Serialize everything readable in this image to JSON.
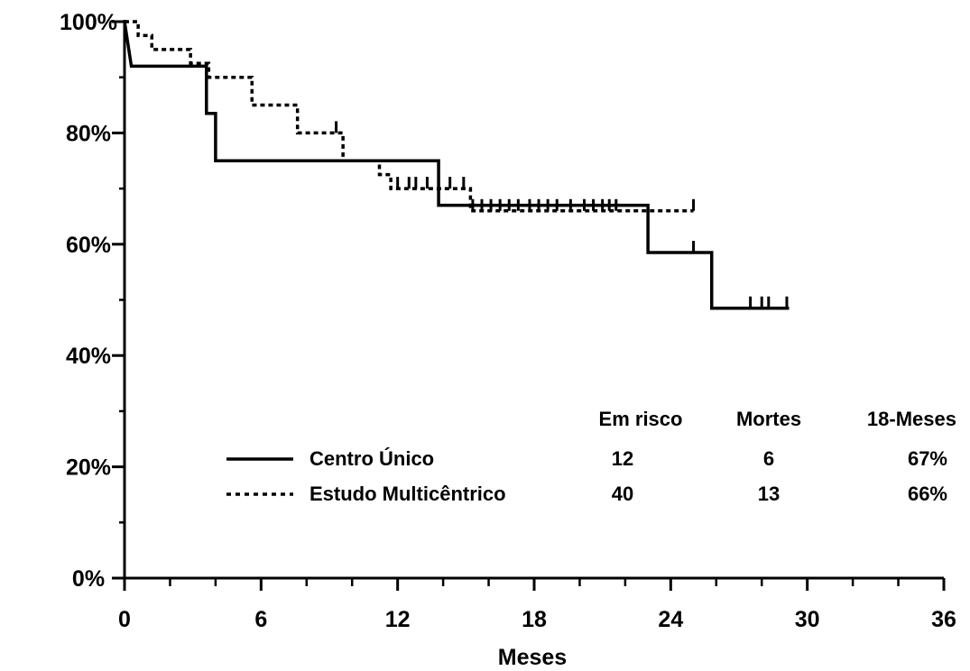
{
  "chart_data": {
    "type": "line",
    "title": "",
    "xlabel": "Meses",
    "ylabel": "",
    "xlim": [
      0,
      36
    ],
    "ylim": [
      0,
      100
    ],
    "x_ticks": [
      0,
      6,
      12,
      18,
      24,
      30,
      36
    ],
    "y_ticks": [
      0,
      20,
      40,
      60,
      80,
      100
    ],
    "x_tick_labels": [
      "0",
      "6",
      "12",
      "18",
      "24",
      "30",
      "36"
    ],
    "y_tick_labels": [
      "0%",
      "20%",
      "40%",
      "60%",
      "80%",
      "100%"
    ],
    "grid": false,
    "legend_position": "bottom-right",
    "series": [
      {
        "name": "Centro Único",
        "style": "solid",
        "color": "#000000",
        "steps": [
          [
            0,
            100
          ],
          [
            0.3,
            92
          ],
          [
            3.6,
            92
          ],
          [
            3.6,
            83.5
          ],
          [
            4.0,
            83.5
          ],
          [
            4.0,
            75
          ],
          [
            13.8,
            75
          ],
          [
            13.8,
            67
          ],
          [
            23.0,
            67
          ],
          [
            23.0,
            58.5
          ],
          [
            25.8,
            58.5
          ],
          [
            25.8,
            48.5
          ],
          [
            29.2,
            48.5
          ]
        ],
        "censors": [
          [
            25,
            58.5
          ],
          [
            27.5,
            48.5
          ],
          [
            28.0,
            48.5
          ],
          [
            28.3,
            48.5
          ],
          [
            29.1,
            48.5
          ]
        ]
      },
      {
        "name": "Estudo Multicêntrico",
        "style": "dotted",
        "color": "#000000",
        "steps": [
          [
            0,
            100
          ],
          [
            0.6,
            100
          ],
          [
            0.6,
            97.5
          ],
          [
            1.2,
            97.5
          ],
          [
            1.2,
            95
          ],
          [
            2.9,
            95
          ],
          [
            2.9,
            92.5
          ],
          [
            3.7,
            92.5
          ],
          [
            3.7,
            90
          ],
          [
            5.6,
            90
          ],
          [
            5.6,
            85
          ],
          [
            7.6,
            85
          ],
          [
            7.6,
            80
          ],
          [
            9.6,
            80
          ],
          [
            9.6,
            75
          ],
          [
            11.2,
            75
          ],
          [
            11.2,
            72.5
          ],
          [
            11.7,
            72.5
          ],
          [
            11.7,
            70
          ],
          [
            15.2,
            70
          ],
          [
            15.2,
            66
          ],
          [
            25.0,
            66
          ]
        ],
        "censors": [
          [
            9.3,
            80
          ],
          [
            12.0,
            70
          ],
          [
            12.5,
            70
          ],
          [
            12.8,
            70
          ],
          [
            13.3,
            70
          ],
          [
            13.8,
            70
          ],
          [
            14.3,
            70
          ],
          [
            14.9,
            70
          ],
          [
            15.3,
            66
          ],
          [
            15.7,
            66
          ],
          [
            16.1,
            66
          ],
          [
            16.5,
            66
          ],
          [
            16.9,
            66
          ],
          [
            17.3,
            66
          ],
          [
            17.8,
            66
          ],
          [
            18.2,
            66
          ],
          [
            18.6,
            66
          ],
          [
            19.0,
            66
          ],
          [
            19.6,
            66
          ],
          [
            20.2,
            66
          ],
          [
            20.6,
            66
          ],
          [
            21.0,
            66
          ],
          [
            21.3,
            66
          ],
          [
            21.6,
            66
          ],
          [
            25.0,
            66
          ]
        ]
      }
    ],
    "risk_table": {
      "columns": [
        "Em risco",
        "Mortes",
        "18-Meses"
      ],
      "rows": [
        {
          "name": "Centro Único",
          "values": [
            "12",
            "6",
            "67%"
          ]
        },
        {
          "name": "Estudo Multicêntrico",
          "values": [
            "40",
            "13",
            "66%"
          ]
        }
      ]
    }
  }
}
